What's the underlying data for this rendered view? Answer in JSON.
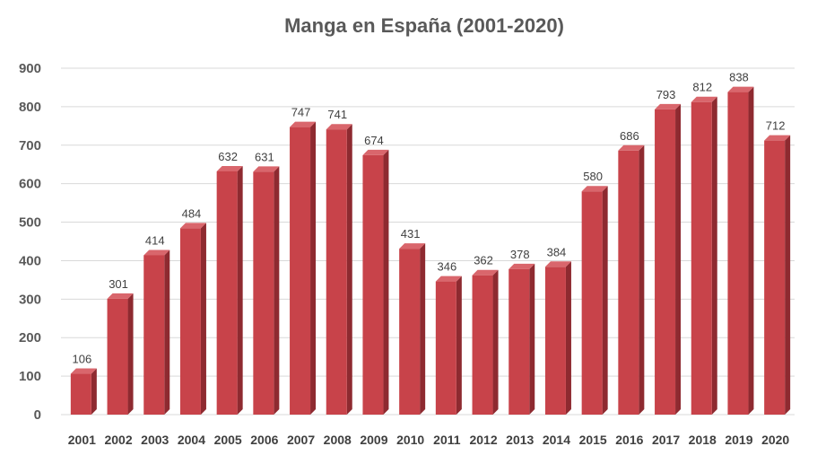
{
  "chart_data": {
    "type": "bar",
    "title": "Manga en España (2001-2020)",
    "xlabel": "",
    "ylabel": "",
    "ylim": [
      0,
      900
    ],
    "yticks": [
      "0",
      "100",
      "200",
      "300",
      "400",
      "500",
      "600",
      "700",
      "800",
      "900"
    ],
    "grid": true,
    "legend": "none",
    "bar_color": "#c8434a",
    "bar_top_color": "#d9666c",
    "bar_side_color": "#8e2a30",
    "categories": [
      "2001",
      "2002",
      "2003",
      "2004",
      "2005",
      "2006",
      "2007",
      "2008",
      "2009",
      "2010",
      "2011",
      "2012",
      "2013",
      "2014",
      "2015",
      "2016",
      "2017",
      "2018",
      "2019",
      "2020"
    ],
    "values": [
      106,
      301,
      414,
      484,
      632,
      631,
      747,
      741,
      674,
      431,
      346,
      362,
      378,
      384,
      580,
      686,
      793,
      812,
      838,
      712
    ],
    "data_labels": [
      "106",
      "301",
      "414",
      "484",
      "632",
      "631",
      "747",
      "741",
      "674",
      "431",
      "346",
      "362",
      "378",
      "384",
      "580",
      "686",
      "793",
      "812",
      "838",
      "712"
    ]
  }
}
